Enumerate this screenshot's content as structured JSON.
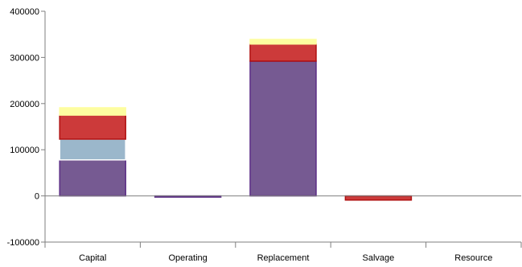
{
  "chart_data": {
    "type": "bar",
    "stacked": true,
    "categories": [
      "Capital",
      "Operating",
      "Replacement",
      "Salvage",
      "Resource"
    ],
    "ylim": [
      -100000,
      400000
    ],
    "yticks": [
      -100000,
      0,
      100000,
      200000,
      300000,
      400000
    ],
    "ytick_labels": [
      "-100000",
      "0",
      "100000",
      "200000",
      "300000",
      "400000"
    ],
    "grid": false,
    "legend": "none",
    "series": [
      {
        "color": "#765a92",
        "border": "#5b2d86",
        "values": [
          78000,
          -1500,
          292000,
          0,
          0
        ]
      },
      {
        "color": "#9bb7cb",
        "border": "#ffffff",
        "values": [
          45000,
          0,
          0,
          0,
          0
        ]
      },
      {
        "color": "#cc3a3a",
        "border": "#b01010",
        "values": [
          52000,
          0,
          37000,
          -9000,
          0
        ]
      },
      {
        "color": "#fdfda0",
        "border": "#fdfda0",
        "values": [
          16000,
          0,
          10000,
          0,
          0
        ]
      }
    ]
  }
}
